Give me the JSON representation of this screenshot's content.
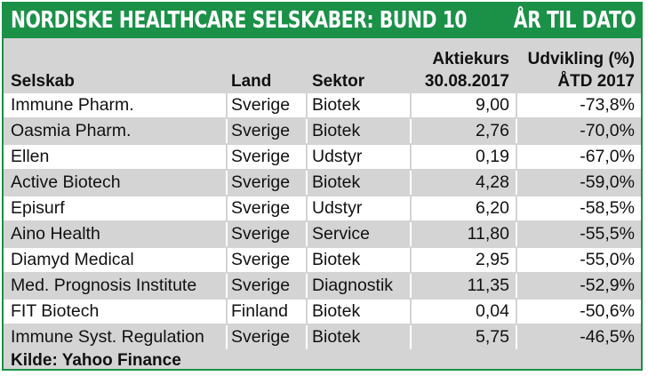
{
  "title": "NORDISKE HEALTHCARE SELSKABER: BUND 10",
  "subtitle": "ÅR TIL DATO",
  "columns": {
    "company": "Selskab",
    "country": "Land",
    "sector": "Sektor",
    "price_line1": "Aktiekurs",
    "price_line2": "30.08.2017",
    "change_line1": "Udvikling (%)",
    "change_line2": "ÅTD 2017"
  },
  "rows": [
    {
      "company": "Immune Pharm.",
      "country": "Sverige",
      "sector": "Biotek",
      "price": "9,00",
      "change": "-73,8%"
    },
    {
      "company": "Oasmia Pharm.",
      "country": "Sverige",
      "sector": "Biotek",
      "price": "2,76",
      "change": "-70,0%"
    },
    {
      "company": "Ellen",
      "country": "Sverige",
      "sector": "Udstyr",
      "price": "0,19",
      "change": "-67,0%"
    },
    {
      "company": "Active Biotech",
      "country": "Sverige",
      "sector": "Biotek",
      "price": "4,28",
      "change": "-59,0%"
    },
    {
      "company": "Episurf",
      "country": "Sverige",
      "sector": "Udstyr",
      "price": "6,20",
      "change": "-58,5%"
    },
    {
      "company": "Aino Health",
      "country": "Sverige",
      "sector": "Service",
      "price": "11,80",
      "change": "-55,5%"
    },
    {
      "company": "Diamyd Medical",
      "country": "Sverige",
      "sector": "Biotek",
      "price": "2,95",
      "change": "-55,0%"
    },
    {
      "company": "Med. Prognosis Institute",
      "country": "Sverige",
      "sector": "Diagnostik",
      "price": "11,35",
      "change": "-52,9%"
    },
    {
      "company": "FIT Biotech",
      "country": "Finland",
      "sector": "Biotek",
      "price": "0,04",
      "change": "-50,6%"
    },
    {
      "company": "Immune Syst. Regulation",
      "country": "Sverige",
      "sector": "Biotek",
      "price": "5,75",
      "change": "-46,5%"
    }
  ],
  "source": "Kilde: Yahoo Finance",
  "colors": {
    "accent": "#1a9147",
    "stripe": "#d4d4d4"
  }
}
